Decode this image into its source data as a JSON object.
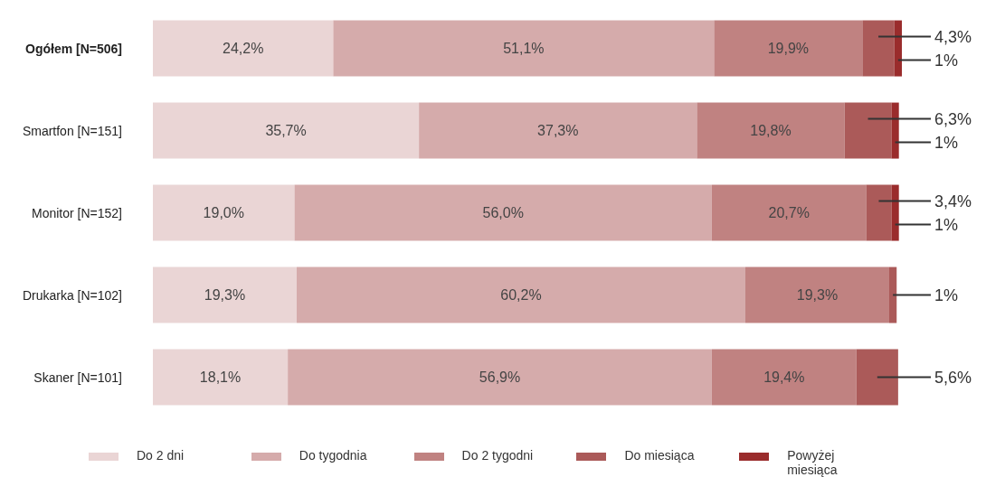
{
  "chart_data": {
    "type": "bar",
    "orientation": "horizontal",
    "stacked": true,
    "categories": [
      "Ogółem [N=506]",
      "Smartfon [N=151]",
      "Monitor [N=152]",
      "Drukarka [N=102]",
      "Skaner [N=101]"
    ],
    "series": [
      {
        "name": "Do 2 dni",
        "color": "#ead5d5",
        "values": [
          24.2,
          35.7,
          19.0,
          19.3,
          18.1
        ],
        "value_labels": [
          "24,2%",
          "35,7%",
          "19,0%",
          "19,3%",
          "18,1%"
        ]
      },
      {
        "name": "Do tygodnia",
        "color": "#d5abab",
        "values": [
          51.1,
          37.3,
          56.0,
          60.2,
          56.9
        ],
        "value_labels": [
          "51,1%",
          "37,3%",
          "56,0%",
          "60,2%",
          "56,9%"
        ]
      },
      {
        "name": "Do 2 tygodni",
        "color": "#c08281",
        "values": [
          19.9,
          19.8,
          20.7,
          19.3,
          19.4
        ],
        "value_labels": [
          "19,9%",
          "19,8%",
          "20,7%",
          "19,3%",
          "19,4%"
        ]
      },
      {
        "name": "Do miesiąca",
        "color": "#ab5a59",
        "values": [
          4.3,
          6.3,
          3.4,
          1,
          5.6
        ],
        "value_labels": [
          "4,3%",
          "6,3%",
          "3,4%",
          "1%",
          "5,6%"
        ]
      },
      {
        "name": "Powyżej miesiąca",
        "color": "#9a2c2c",
        "values": [
          1,
          1,
          1,
          null,
          null
        ],
        "value_labels": [
          "1%",
          "1%",
          "1%",
          null,
          null
        ]
      }
    ],
    "grid": false,
    "legend": "bottom"
  }
}
